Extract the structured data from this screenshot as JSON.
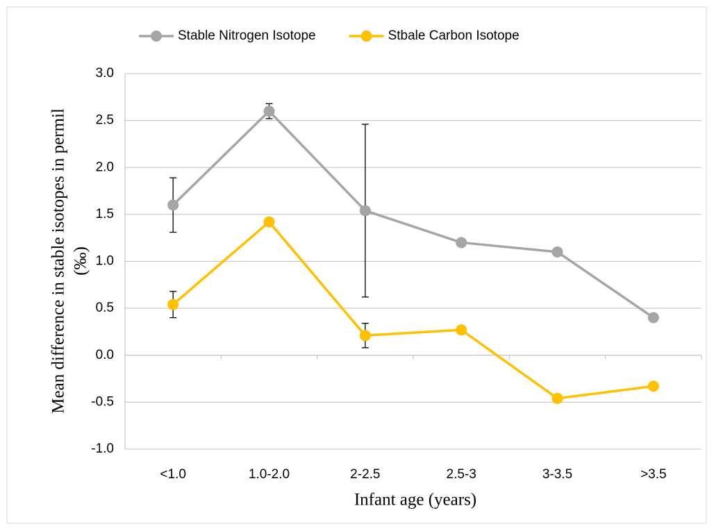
{
  "chart_data": {
    "type": "line",
    "xlabel": "Infant age (years)",
    "ylabel": [
      "Mean difference in stable isotopes in permil",
      "(‰)"
    ],
    "categories": [
      "<1.0",
      "1.0-2.0",
      "2-2.5",
      "2.5-3",
      "3-3.5",
      ">3.5"
    ],
    "series": [
      {
        "name": "Stable Nitrogen Isotope",
        "color": "#a5a5a5",
        "values": [
          1.6,
          2.6,
          1.54,
          1.2,
          1.1,
          0.4
        ],
        "errors": [
          0.29,
          0.08,
          0.92,
          null,
          null,
          null
        ]
      },
      {
        "name": "Stbale Carbon Isotope",
        "color": "#ffc000",
        "values": [
          0.54,
          1.42,
          0.21,
          0.27,
          -0.46,
          -0.33
        ],
        "errors": [
          0.14,
          0.03,
          0.13,
          null,
          null,
          null
        ]
      }
    ],
    "ylim": [
      -1,
      3
    ],
    "yticks": [
      {
        "value": -1,
        "label": "-1.0"
      },
      -0.5,
      {
        "value": 0,
        "label": "0.0"
      },
      0.5,
      {
        "value": 1,
        "label": "1.0"
      },
      1.5,
      {
        "value": 2,
        "label": "2.0"
      },
      2.5,
      {
        "value": 3,
        "label": "3.0"
      }
    ],
    "grid": true,
    "legend": "top"
  }
}
